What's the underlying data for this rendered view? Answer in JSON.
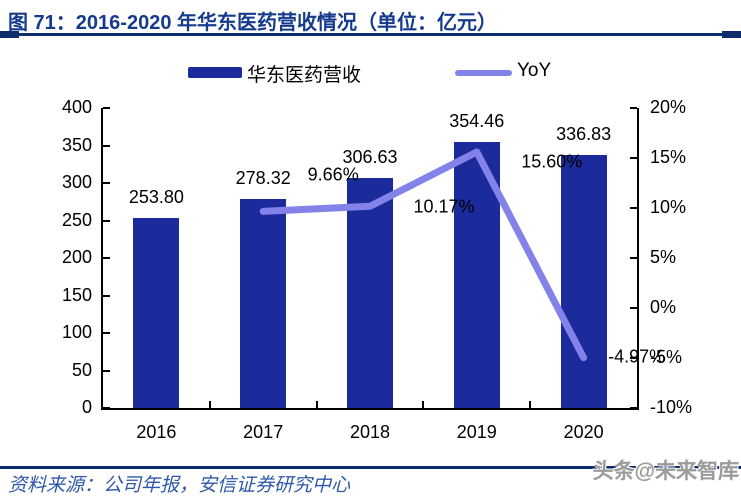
{
  "page": {
    "title": "图 71：2016-2020 年华东医药营收情况（单位：亿元）",
    "source": "资料来源：公司年报，安信证券研究中心",
    "watermark": "头条@未来智库"
  },
  "legend": {
    "bar_label": "华东医药营收",
    "line_label": "YoY"
  },
  "colors": {
    "bar": "#1B2B9B",
    "line": "#8282E8",
    "title_text": "#163A8C",
    "rule": "#0D2D6D",
    "source_text": "#2E59A8",
    "watermark_text": "#9B9B9B",
    "axis": "#000000"
  },
  "chart_data": {
    "type": "combo-bar-line",
    "title": "2016-2020 年华东医药营收情况",
    "unit": "亿元",
    "categories": [
      "2016",
      "2017",
      "2018",
      "2019",
      "2020"
    ],
    "series": [
      {
        "name": "华东医药营收",
        "type": "bar",
        "axis": "left",
        "values": [
          253.8,
          278.32,
          306.63,
          354.46,
          336.83
        ],
        "labels": [
          "253.80",
          "278.32",
          "306.63",
          "354.46",
          "336.83"
        ]
      },
      {
        "name": "YoY",
        "type": "line",
        "axis": "right",
        "values": [
          null,
          9.66,
          10.17,
          15.6,
          -4.97
        ],
        "labels": [
          null,
          "9.66%",
          "10.17%",
          "15.60%",
          "-4.97%"
        ]
      }
    ],
    "left_axis": {
      "min": 0,
      "max": 400,
      "step": 50,
      "tick_labels": [
        "0",
        "50",
        "100",
        "150",
        "200",
        "250",
        "300",
        "350",
        "400"
      ]
    },
    "right_axis": {
      "min": -10,
      "max": 20,
      "step": 5,
      "tick_labels": [
        "-10%",
        "-5%",
        "0%",
        "5%",
        "10%",
        "15%",
        "20%"
      ]
    },
    "legend_position": "top",
    "grid": false
  }
}
